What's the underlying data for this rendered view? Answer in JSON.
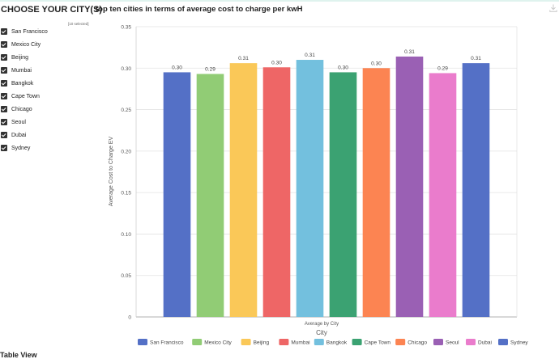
{
  "filter": {
    "title": "CHOOSE YOUR CITY(S)",
    "selected_text": "[10 selected]",
    "items": [
      {
        "label": "San Francisco",
        "checked": true
      },
      {
        "label": "Mexico City",
        "checked": true
      },
      {
        "label": "Beijing",
        "checked": true
      },
      {
        "label": "Mumbai",
        "checked": true
      },
      {
        "label": "Bangkok",
        "checked": true
      },
      {
        "label": "Cape Town",
        "checked": true
      },
      {
        "label": "Chicago",
        "checked": true
      },
      {
        "label": "Seoul",
        "checked": true
      },
      {
        "label": "Dubai",
        "checked": true
      },
      {
        "label": "Sydney",
        "checked": true
      }
    ]
  },
  "toolbar": {
    "download_icon": "download-icon"
  },
  "table_view_label": "Table View",
  "chart_data": {
    "type": "bar",
    "title": "top ten cities in terms of average cost to charge per kwH",
    "xlabel": "City",
    "x_category_label": "Average by City",
    "ylabel": "Average Cost to Charge EV",
    "ylim": [
      0,
      0.35
    ],
    "yticks": [
      0,
      0.05,
      0.1,
      0.15,
      0.2,
      0.25,
      0.3,
      0.35
    ],
    "ytick_labels": [
      "0",
      "0.05",
      "0.10",
      "0.15",
      "0.20",
      "0.25",
      "0.30",
      "0.35"
    ],
    "grid": true,
    "legend": "bottom",
    "categories": [
      "San Francisco",
      "Mexico City",
      "Beijing",
      "Mumbai",
      "Bangkok",
      "Cape Town",
      "Chicago",
      "Seoul",
      "Dubai",
      "Sydney"
    ],
    "values": [
      0.295,
      0.293,
      0.306,
      0.301,
      0.31,
      0.295,
      0.3,
      0.314,
      0.294,
      0.306
    ],
    "value_labels": [
      "0.30",
      "0.29",
      "0.31",
      "0.30",
      "0.31",
      "0.30",
      "0.30",
      "0.31",
      "0.29",
      "0.31"
    ],
    "colors": [
      "#5470c6",
      "#91cc75",
      "#fac858",
      "#ee6666",
      "#73c0de",
      "#3ba272",
      "#fc8452",
      "#9a60b4",
      "#ea7ccc",
      "#5470c6"
    ]
  }
}
